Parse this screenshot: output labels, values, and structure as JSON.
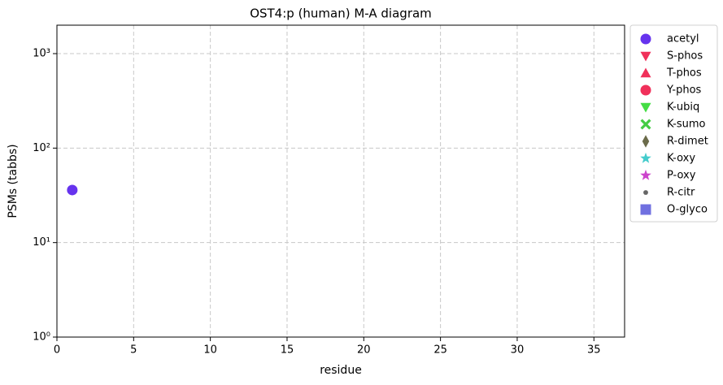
{
  "chart_data": {
    "type": "scatter",
    "title": "OST4:p (human) M-A diagram",
    "x_label": "residue",
    "y_label": "PSMs (tabbs)",
    "xlim": [
      0,
      37
    ],
    "xticks": [
      0,
      5,
      10,
      15,
      20,
      25,
      30,
      35
    ],
    "ylim": [
      1,
      2000
    ],
    "log_y": true,
    "yticks": [
      {
        "value": 1,
        "label": "10⁰"
      },
      {
        "value": 10,
        "label": "10¹"
      },
      {
        "value": 100,
        "label": "10²"
      },
      {
        "value": 1000,
        "label": "10³"
      }
    ],
    "grid": true,
    "legend": "outside right",
    "series": [
      {
        "name": "acetyl",
        "color": "#6633ee",
        "marker": "circle",
        "x": [
          1
        ],
        "values": [
          36
        ]
      },
      {
        "name": "S-phos",
        "color": "#f0305a",
        "marker": "triangle-down",
        "x": [],
        "values": []
      },
      {
        "name": "T-phos",
        "color": "#f0305a",
        "marker": "triangle-up",
        "x": [],
        "values": []
      },
      {
        "name": "Y-phos",
        "color": "#f0305a",
        "marker": "circle",
        "x": [],
        "values": []
      },
      {
        "name": "K-ubiq",
        "color": "#44dd44",
        "marker": "triangle-down",
        "x": [],
        "values": []
      },
      {
        "name": "K-sumo",
        "color": "#44cc44",
        "marker": "x",
        "x": [],
        "values": []
      },
      {
        "name": "R-dimet",
        "color": "#6b6b4a",
        "marker": "diamond",
        "x": [],
        "values": []
      },
      {
        "name": "K-oxy",
        "color": "#44cccc",
        "marker": "star",
        "x": [],
        "values": []
      },
      {
        "name": "P-oxy",
        "color": "#cc44cc",
        "marker": "star",
        "x": [],
        "values": []
      },
      {
        "name": "R-citr",
        "color": "#666666",
        "marker": "point",
        "x": [],
        "values": []
      },
      {
        "name": "O-glyco",
        "color": "#7070e0",
        "marker": "square",
        "x": [],
        "values": []
      }
    ]
  }
}
